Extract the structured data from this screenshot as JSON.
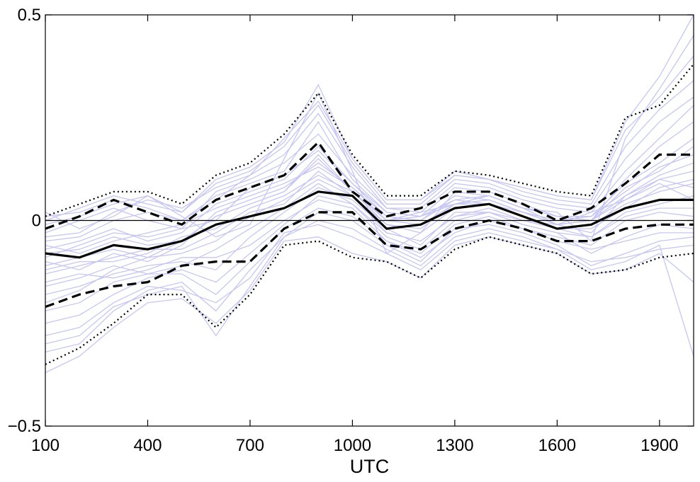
{
  "chart_data": {
    "type": "line",
    "title": "",
    "xlabel": "UTC",
    "ylabel": "",
    "xlim": [
      100,
      2000
    ],
    "ylim": [
      -0.5,
      0.5
    ],
    "x_ticks": [
      100,
      400,
      700,
      1000,
      1300,
      1600,
      1900
    ],
    "x_tick_labels": [
      "100",
      "400",
      "700",
      "1000",
      "1300",
      "1600",
      "1900"
    ],
    "y_ticks": [
      -0.5,
      0,
      0.5
    ],
    "y_tick_labels": [
      "−0.5",
      "0",
      "0.5"
    ],
    "grid": false,
    "legend": "none",
    "x": [
      100,
      200,
      300,
      400,
      500,
      600,
      700,
      800,
      900,
      1000,
      1100,
      1200,
      1300,
      1400,
      1500,
      1600,
      1700,
      1800,
      1900,
      2000
    ],
    "zero_line": 0,
    "series": [
      {
        "style": "solid",
        "color": "#000000",
        "values": [
          -0.08,
          -0.09,
          -0.06,
          -0.07,
          -0.05,
          -0.01,
          0.01,
          0.03,
          0.07,
          0.06,
          -0.02,
          -0.01,
          0.03,
          0.04,
          0.01,
          -0.02,
          -0.01,
          0.03,
          0.05,
          0.05
        ]
      },
      {
        "style": "dashed",
        "color": "#000000",
        "values": [
          -0.02,
          0.01,
          0.05,
          0.02,
          -0.01,
          0.05,
          0.08,
          0.11,
          0.19,
          0.07,
          0.01,
          0.03,
          0.07,
          0.07,
          0.04,
          0.0,
          0.03,
          0.09,
          0.16,
          0.16
        ]
      },
      {
        "style": "dashed",
        "color": "#000000",
        "values": [
          -0.21,
          -0.18,
          -0.16,
          -0.15,
          -0.11,
          -0.1,
          -0.1,
          -0.02,
          0.02,
          0.02,
          -0.06,
          -0.07,
          -0.02,
          0.0,
          -0.02,
          -0.05,
          -0.05,
          -0.02,
          -0.01,
          -0.01
        ]
      },
      {
        "style": "dotted",
        "color": "#000000",
        "values": [
          0.01,
          0.04,
          0.07,
          0.07,
          0.04,
          0.11,
          0.14,
          0.21,
          0.31,
          0.16,
          0.06,
          0.06,
          0.12,
          0.11,
          0.09,
          0.07,
          0.06,
          0.25,
          0.28,
          0.38
        ]
      },
      {
        "style": "dotted",
        "color": "#000000",
        "values": [
          -0.35,
          -0.31,
          -0.25,
          -0.18,
          -0.18,
          -0.26,
          -0.18,
          -0.06,
          -0.05,
          -0.09,
          -0.1,
          -0.14,
          -0.07,
          -0.04,
          -0.06,
          -0.08,
          -0.13,
          -0.12,
          -0.09,
          -0.08
        ]
      }
    ],
    "ensemble": {
      "color": "#c6c6f2",
      "members": [
        [
          0.02,
          -0.02,
          0.01,
          0.06,
          0.01,
          -0.04,
          -0.01,
          0.15,
          0.31,
          0.12,
          -0.08,
          -0.03,
          0.07,
          0.06,
          0.03,
          0.02,
          -0.05,
          0.2,
          0.32,
          0.45
        ],
        [
          -0.2,
          -0.17,
          -0.12,
          -0.09,
          -0.08,
          -0.05,
          0.01,
          0.05,
          0.1,
          0.06,
          -0.03,
          -0.05,
          0.01,
          0.03,
          0.0,
          -0.01,
          -0.03,
          0.06,
          0.1,
          0.12
        ],
        [
          -0.05,
          -0.04,
          0.0,
          0.02,
          0.0,
          0.06,
          0.09,
          0.12,
          0.24,
          0.1,
          0.02,
          0.01,
          0.08,
          0.07,
          0.04,
          0.01,
          0.0,
          0.1,
          0.18,
          0.24
        ],
        [
          -0.32,
          -0.3,
          -0.22,
          -0.17,
          -0.15,
          -0.22,
          -0.12,
          -0.04,
          0.02,
          0.0,
          -0.06,
          -0.1,
          -0.02,
          -0.01,
          -0.03,
          -0.06,
          -0.11,
          -0.08,
          -0.05,
          -0.04
        ],
        [
          -0.1,
          -0.12,
          -0.08,
          -0.1,
          -0.06,
          0.02,
          0.05,
          0.08,
          0.14,
          0.08,
          0.0,
          0.02,
          0.04,
          0.05,
          0.02,
          -0.01,
          0.02,
          0.05,
          0.09,
          0.05
        ],
        [
          0.0,
          0.03,
          0.06,
          0.04,
          0.02,
          0.09,
          0.12,
          0.18,
          0.28,
          0.14,
          0.04,
          0.04,
          0.11,
          0.1,
          0.07,
          0.05,
          0.04,
          0.18,
          0.27,
          0.34
        ],
        [
          -0.15,
          -0.13,
          -0.14,
          -0.12,
          -0.09,
          -0.09,
          -0.06,
          0.0,
          0.05,
          0.03,
          -0.05,
          -0.08,
          -0.01,
          0.01,
          -0.02,
          -0.04,
          -0.06,
          0.0,
          0.02,
          0.01
        ],
        [
          -0.07,
          -0.05,
          -0.02,
          -0.05,
          -0.03,
          0.04,
          0.07,
          0.1,
          0.18,
          0.09,
          0.01,
          0.0,
          0.05,
          0.04,
          0.02,
          0.0,
          0.01,
          0.07,
          0.13,
          0.16
        ],
        [
          -0.25,
          -0.23,
          -0.18,
          -0.14,
          -0.12,
          -0.15,
          -0.08,
          -0.01,
          0.06,
          0.04,
          -0.04,
          -0.07,
          0.0,
          0.02,
          -0.01,
          -0.03,
          -0.08,
          -0.04,
          -0.01,
          -0.02
        ],
        [
          -0.03,
          0.0,
          0.03,
          0.0,
          -0.02,
          0.07,
          0.1,
          0.14,
          0.21,
          0.11,
          0.03,
          0.02,
          0.09,
          0.08,
          0.05,
          0.03,
          0.02,
          0.12,
          0.2,
          0.28
        ],
        [
          -0.12,
          -0.1,
          -0.1,
          -0.08,
          -0.04,
          -0.02,
          0.03,
          0.06,
          0.11,
          0.07,
          -0.01,
          -0.03,
          0.03,
          0.04,
          0.01,
          -0.02,
          -0.01,
          0.04,
          0.07,
          0.09
        ],
        [
          -0.28,
          -0.26,
          -0.2,
          -0.16,
          -0.17,
          -0.2,
          -0.14,
          -0.03,
          -0.01,
          -0.04,
          -0.08,
          -0.12,
          -0.05,
          -0.03,
          -0.05,
          -0.07,
          -0.12,
          -0.1,
          -0.06,
          -0.33
        ],
        [
          -0.08,
          -0.07,
          -0.04,
          -0.06,
          -0.05,
          0.01,
          0.04,
          0.07,
          0.16,
          0.07,
          0.0,
          0.01,
          0.04,
          0.06,
          0.03,
          -0.01,
          0.0,
          0.06,
          0.11,
          0.14
        ],
        [
          0.01,
          0.02,
          0.05,
          0.03,
          0.0,
          0.05,
          0.11,
          0.16,
          0.26,
          0.13,
          0.03,
          0.03,
          0.1,
          0.09,
          0.06,
          0.04,
          0.03,
          0.15,
          0.24,
          0.3
        ],
        [
          -0.18,
          -0.16,
          -0.13,
          -0.11,
          -0.1,
          -0.12,
          -0.04,
          0.02,
          0.08,
          0.05,
          -0.02,
          -0.06,
          0.02,
          0.02,
          0.0,
          -0.02,
          -0.04,
          0.02,
          0.04,
          0.06
        ],
        [
          -0.37,
          -0.33,
          -0.26,
          -0.2,
          -0.19,
          -0.25,
          -0.17,
          -0.05,
          -0.04,
          -0.08,
          -0.1,
          -0.14,
          -0.06,
          -0.04,
          -0.06,
          -0.08,
          -0.13,
          -0.12,
          -0.08,
          -0.15
        ],
        [
          -0.04,
          -0.03,
          0.02,
          0.05,
          0.03,
          0.08,
          0.11,
          0.2,
          0.29,
          0.15,
          0.05,
          0.05,
          0.12,
          0.1,
          0.08,
          0.06,
          0.05,
          0.22,
          0.3,
          0.4
        ],
        [
          -0.13,
          -0.11,
          -0.09,
          -0.07,
          -0.07,
          -0.03,
          0.02,
          0.04,
          0.12,
          0.06,
          -0.01,
          -0.02,
          0.04,
          0.04,
          0.01,
          -0.02,
          -0.02,
          0.03,
          0.08,
          0.1
        ],
        [
          -0.22,
          -0.2,
          -0.15,
          -0.13,
          -0.13,
          -0.18,
          -0.1,
          -0.02,
          0.03,
          0.01,
          -0.05,
          -0.09,
          -0.03,
          0.0,
          -0.02,
          -0.05,
          -0.07,
          -0.05,
          -0.03,
          -0.03
        ],
        [
          -0.06,
          -0.08,
          -0.05,
          -0.03,
          -0.01,
          0.03,
          0.06,
          0.09,
          0.13,
          0.08,
          0.01,
          0.0,
          0.06,
          0.05,
          0.02,
          0.0,
          0.0,
          0.08,
          0.12,
          0.18
        ],
        [
          -0.01,
          0.01,
          0.04,
          0.06,
          0.02,
          0.1,
          0.13,
          0.19,
          0.33,
          0.15,
          0.05,
          0.05,
          0.11,
          0.1,
          0.08,
          0.06,
          0.05,
          0.24,
          0.35,
          0.5
        ],
        [
          -0.16,
          -0.14,
          -0.11,
          -0.13,
          -0.11,
          -0.07,
          -0.02,
          0.03,
          0.09,
          0.04,
          -0.03,
          -0.05,
          0.01,
          0.02,
          -0.01,
          -0.03,
          -0.04,
          0.01,
          0.03,
          0.03
        ],
        [
          -0.09,
          -0.06,
          -0.03,
          -0.04,
          -0.02,
          0.0,
          0.08,
          0.11,
          0.17,
          0.09,
          0.02,
          0.01,
          0.05,
          0.06,
          0.03,
          0.01,
          0.01,
          0.09,
          0.14,
          0.2
        ],
        [
          -0.3,
          -0.28,
          -0.21,
          -0.18,
          -0.16,
          -0.28,
          -0.16,
          -0.04,
          0.0,
          -0.02,
          -0.07,
          -0.11,
          -0.04,
          -0.02,
          -0.04,
          -0.07,
          -0.1,
          -0.09,
          -0.07,
          -0.06
        ],
        [
          -0.11,
          -0.09,
          -0.07,
          -0.09,
          -0.05,
          0.01,
          0.04,
          0.07,
          0.15,
          0.07,
          0.0,
          -0.01,
          0.04,
          0.05,
          0.02,
          -0.01,
          0.0,
          0.05,
          0.1,
          0.08
        ]
      ]
    }
  }
}
